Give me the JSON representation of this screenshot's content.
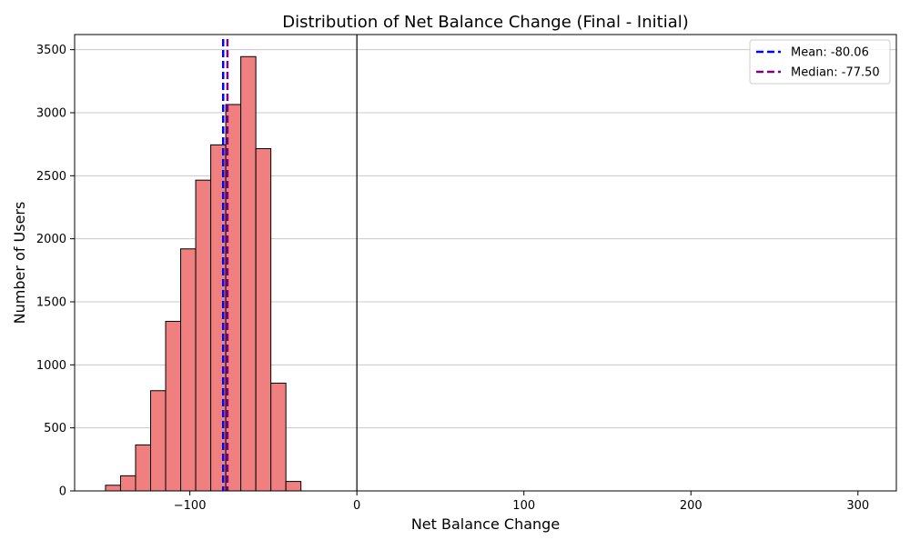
{
  "chart_data": {
    "type": "bar",
    "title": "Distribution of Net Balance Change (Final - Initial)",
    "xlabel": "Net Balance Change",
    "ylabel": "Number of Users",
    "xlim": [
      -169,
      323
    ],
    "ylim": [
      0,
      3620
    ],
    "xticks": [
      -100,
      0,
      100,
      200,
      300
    ],
    "xtick_labels": [
      "−100",
      "0",
      "100",
      "200",
      "300"
    ],
    "yticks": [
      0,
      500,
      1000,
      1500,
      2000,
      2500,
      3000,
      3500
    ],
    "grid": "horizontal",
    "legend_position": "top-right",
    "bins": [
      {
        "x0": -150.5,
        "x1": -141.5,
        "count": 45
      },
      {
        "x0": -141.5,
        "x1": -132.5,
        "count": 120
      },
      {
        "x0": -132.5,
        "x1": -123.5,
        "count": 365
      },
      {
        "x0": -123.5,
        "x1": -114.5,
        "count": 795
      },
      {
        "x0": -114.5,
        "x1": -105.5,
        "count": 1345
      },
      {
        "x0": -105.5,
        "x1": -96.5,
        "count": 1920
      },
      {
        "x0": -96.5,
        "x1": -87.5,
        "count": 2465
      },
      {
        "x0": -87.5,
        "x1": -78.5,
        "count": 2745
      },
      {
        "x0": -78.5,
        "x1": -69.5,
        "count": 3065
      },
      {
        "x0": -69.5,
        "x1": -60.5,
        "count": 3445
      },
      {
        "x0": -60.5,
        "x1": -51.5,
        "count": 2715
      },
      {
        "x0": -51.5,
        "x1": -42.5,
        "count": 855
      },
      {
        "x0": -42.5,
        "x1": -33.5,
        "count": 75
      }
    ],
    "reference_lines": [
      {
        "name": "Mean: -80.06",
        "value": -80.06,
        "color": "#0000ff",
        "style": "dashed"
      },
      {
        "name": "Median: -77.50",
        "value": -77.5,
        "color": "#800080",
        "style": "dashed"
      }
    ],
    "zero_line": {
      "value": 0,
      "color": "#000000"
    },
    "bar_color": "#f08080",
    "bar_edge_color": "#000000"
  }
}
